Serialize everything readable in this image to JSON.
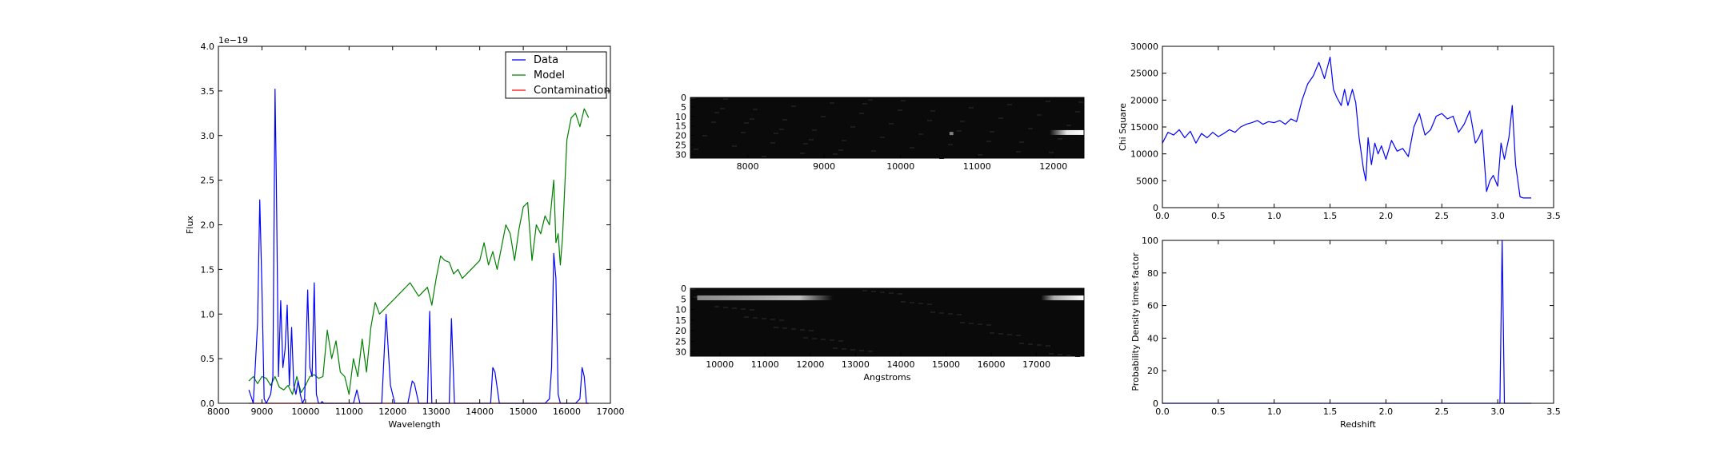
{
  "chart_data": [
    {
      "type": "line",
      "xlabel": "Wavelength",
      "ylabel": "Flux",
      "offset_text": "1e−19",
      "xlim": [
        8000,
        17000
      ],
      "ylim": [
        0.0,
        4.0
      ],
      "xticks": [
        8000,
        9000,
        10000,
        11000,
        12000,
        13000,
        14000,
        15000,
        16000,
        17000
      ],
      "xtick_labels": [
        "8000",
        "9000",
        "10000",
        "11000",
        "12000",
        "13000",
        "14000",
        "15000",
        "16000",
        "17000"
      ],
      "yticks": [
        0.0,
        0.5,
        1.0,
        1.5,
        2.0,
        2.5,
        3.0,
        3.5,
        4.0
      ],
      "ytick_labels": [
        "0.0",
        "0.5",
        "1.0",
        "1.5",
        "2.0",
        "2.5",
        "3.0",
        "3.5",
        "4.0"
      ],
      "grid": false,
      "legend_position": "top-right",
      "series": [
        {
          "name": "Data",
          "color": "#0000ff",
          "x": [
            8700,
            8800,
            8900,
            8950,
            9000,
            9050,
            9100,
            9200,
            9250,
            9300,
            9330,
            9380,
            9430,
            9480,
            9530,
            9580,
            9630,
            9680,
            9730,
            9780,
            9830,
            9880,
            9930,
            9980,
            10050,
            10100,
            10150,
            10200,
            10250,
            10300,
            10350,
            10380,
            10420,
            10500,
            10700,
            10900,
            11100,
            11180,
            11250,
            11350,
            11500,
            11650,
            11750,
            11850,
            11950,
            12050,
            12200,
            12350,
            12450,
            12500,
            12600,
            12700,
            12800,
            12850,
            12900,
            13000,
            13200,
            13300,
            13350,
            13420,
            13500,
            13800,
            14100,
            14250,
            14300,
            14350,
            14450,
            14500,
            14800,
            15200,
            15500,
            15600,
            15650,
            15700,
            15750,
            15800,
            15850,
            15950,
            16100,
            16200,
            16300,
            16350,
            16400,
            16450,
            16500
          ],
          "values": [
            0.15,
            0.0,
            0.9,
            2.28,
            1.3,
            0.05,
            0.0,
            0.1,
            0.3,
            3.52,
            2.5,
            0.3,
            1.15,
            0.4,
            0.6,
            1.1,
            0.2,
            0.85,
            0.2,
            0.1,
            0.25,
            0.1,
            0.0,
            0.05,
            1.27,
            0.4,
            0.3,
            1.35,
            0.1,
            0.0,
            0.0,
            0.02,
            0.0,
            0.0,
            0.0,
            0.0,
            0.0,
            0.15,
            0.0,
            0.0,
            0.0,
            0.0,
            0.0,
            1.0,
            0.2,
            0.0,
            0.0,
            0.0,
            0.25,
            0.22,
            0.0,
            0.0,
            0.0,
            1.03,
            0.0,
            0.0,
            0.0,
            0.0,
            0.95,
            0.0,
            0.0,
            0.0,
            0.0,
            0.0,
            0.4,
            0.35,
            0.0,
            0.0,
            0.0,
            0.0,
            0.0,
            0.05,
            0.4,
            1.68,
            1.4,
            0.1,
            0.0,
            0.0,
            0.0,
            0.0,
            0.05,
            0.4,
            0.3,
            0.0,
            0.0
          ]
        },
        {
          "name": "Model",
          "color": "#008000",
          "x": [
            8700,
            8800,
            8900,
            9000,
            9100,
            9200,
            9300,
            9400,
            9500,
            9600,
            9700,
            9800,
            9900,
            10000,
            10100,
            10200,
            10300,
            10400,
            10500,
            10600,
            10700,
            10800,
            10900,
            11000,
            11100,
            11200,
            11300,
            11400,
            11500,
            11600,
            11700,
            11800,
            11900,
            12000,
            12200,
            12400,
            12600,
            12800,
            12900,
            13000,
            13100,
            13200,
            13300,
            13400,
            13500,
            13600,
            13800,
            14000,
            14100,
            14200,
            14300,
            14400,
            14500,
            14600,
            14700,
            14800,
            14900,
            15000,
            15100,
            15200,
            15300,
            15400,
            15500,
            15600,
            15700,
            15750,
            15800,
            15850,
            15900,
            16000,
            16100,
            16200,
            16300,
            16400,
            16450,
            16500
          ],
          "values": [
            0.25,
            0.3,
            0.22,
            0.3,
            0.28,
            0.2,
            0.3,
            0.18,
            0.15,
            0.2,
            0.1,
            0.3,
            0.12,
            0.2,
            0.3,
            0.32,
            0.28,
            0.3,
            0.82,
            0.5,
            0.7,
            0.35,
            0.3,
            0.1,
            0.5,
            0.3,
            0.72,
            0.35,
            0.85,
            1.13,
            1.0,
            1.05,
            1.1,
            1.15,
            1.25,
            1.35,
            1.2,
            1.3,
            1.1,
            1.4,
            1.65,
            1.6,
            1.58,
            1.45,
            1.5,
            1.4,
            1.5,
            1.6,
            1.8,
            1.55,
            1.7,
            1.5,
            1.75,
            2.0,
            1.9,
            1.6,
            1.95,
            2.2,
            2.25,
            1.6,
            2.0,
            1.9,
            2.1,
            2.0,
            2.5,
            1.8,
            1.9,
            1.55,
            1.85,
            2.95,
            3.2,
            3.25,
            3.1,
            3.3,
            3.25,
            3.2
          ]
        },
        {
          "name": "Contamination",
          "color": "#ff0000",
          "x": [
            8700,
            16500
          ],
          "values": [
            0.0,
            0.0
          ]
        }
      ]
    },
    {
      "type": "heatmap",
      "xlabel": "",
      "ylabel": "",
      "xlim": [
        7250,
        12400
      ],
      "ylim": [
        32,
        0
      ],
      "xticks": [
        8000,
        9000,
        10000,
        11000,
        12000
      ],
      "xtick_labels": [
        "8000",
        "9000",
        "10000",
        "11000",
        "12000"
      ],
      "yticks": [
        0,
        5,
        10,
        15,
        20,
        25,
        30
      ],
      "ytick_labels": [
        "0",
        "5",
        "10",
        "15",
        "20",
        "25",
        "30"
      ],
      "colormap": "gray",
      "bright_features": [
        {
          "wavelength_range": [
            11950,
            12400
          ],
          "row": 18.5,
          "intensity": 0.9
        },
        {
          "wavelength_range": [
            10640,
            10690
          ],
          "row": 19,
          "intensity": 0.5
        }
      ]
    },
    {
      "type": "heatmap",
      "xlabel": "Angstroms",
      "ylabel": "",
      "xlim": [
        9350,
        18050
      ],
      "ylim": [
        32,
        0
      ],
      "xticks": [
        10000,
        11000,
        12000,
        13000,
        14000,
        15000,
        16000,
        17000
      ],
      "xtick_labels": [
        "10000",
        "11000",
        "12000",
        "13000",
        "14000",
        "15000",
        "16000",
        "17000"
      ],
      "yticks": [
        0,
        5,
        10,
        15,
        20,
        25,
        30
      ],
      "ytick_labels": [
        "0",
        "5",
        "10",
        "15",
        "20",
        "25",
        "30"
      ],
      "colormap": "gray",
      "bright_features": [
        {
          "wavelength_range": [
            9500,
            12500
          ],
          "row": 4.5,
          "intensity": 0.75
        },
        {
          "wavelength_range": [
            17100,
            18050
          ],
          "row": 4.5,
          "intensity": 1.0
        }
      ]
    },
    {
      "type": "line",
      "xlabel": "",
      "ylabel": "Chi Square",
      "xlim": [
        0.0,
        3.5
      ],
      "ylim": [
        0,
        30000
      ],
      "xticks": [
        0.0,
        0.5,
        1.0,
        1.5,
        2.0,
        2.5,
        3.0,
        3.5
      ],
      "xtick_labels": [
        "0.0",
        "0.5",
        "1.0",
        "1.5",
        "2.0",
        "2.5",
        "3.0",
        "3.5"
      ],
      "yticks": [
        0,
        5000,
        10000,
        15000,
        20000,
        25000,
        30000
      ],
      "ytick_labels": [
        "0",
        "5000",
        "10000",
        "15000",
        "20000",
        "25000",
        "30000"
      ],
      "grid": false,
      "series": [
        {
          "color": "#0000ff",
          "x": [
            0.0,
            0.05,
            0.1,
            0.15,
            0.2,
            0.25,
            0.3,
            0.35,
            0.4,
            0.45,
            0.5,
            0.55,
            0.6,
            0.65,
            0.7,
            0.75,
            0.8,
            0.85,
            0.9,
            0.95,
            1.0,
            1.05,
            1.1,
            1.15,
            1.2,
            1.25,
            1.3,
            1.35,
            1.4,
            1.45,
            1.5,
            1.53,
            1.56,
            1.6,
            1.63,
            1.66,
            1.7,
            1.73,
            1.76,
            1.8,
            1.82,
            1.84,
            1.87,
            1.9,
            1.93,
            1.96,
            2.0,
            2.05,
            2.1,
            2.15,
            2.2,
            2.25,
            2.3,
            2.35,
            2.4,
            2.45,
            2.5,
            2.55,
            2.6,
            2.65,
            2.7,
            2.75,
            2.8,
            2.83,
            2.86,
            2.9,
            2.93,
            2.96,
            3.0,
            3.03,
            3.06,
            3.1,
            3.13,
            3.16,
            3.2,
            3.23,
            3.26,
            3.3
          ],
          "values": [
            12000,
            14000,
            13500,
            14500,
            13000,
            14200,
            12000,
            13800,
            13000,
            14000,
            13200,
            13800,
            14500,
            14000,
            15000,
            15500,
            15800,
            16200,
            15500,
            16000,
            15800,
            16200,
            15500,
            16500,
            16000,
            20000,
            23000,
            24500,
            27000,
            24000,
            28000,
            22000,
            20500,
            19000,
            22000,
            19000,
            22000,
            19500,
            13000,
            7000,
            5000,
            13000,
            8000,
            12000,
            10000,
            11500,
            9000,
            12500,
            10500,
            11000,
            9500,
            15000,
            17500,
            13500,
            14500,
            17000,
            17500,
            16500,
            17000,
            14000,
            15500,
            18000,
            12000,
            13000,
            14500,
            3000,
            5000,
            6000,
            4000,
            12000,
            9000,
            13000,
            19000,
            8000,
            2000,
            1800,
            1800,
            1800
          ]
        }
      ]
    },
    {
      "type": "line",
      "xlabel": "Redshift",
      "ylabel": "Probability Density times factor",
      "xlim": [
        0.0,
        3.5
      ],
      "ylim": [
        0,
        100
      ],
      "xticks": [
        0.0,
        0.5,
        1.0,
        1.5,
        2.0,
        2.5,
        3.0,
        3.5
      ],
      "xtick_labels": [
        "0.0",
        "0.5",
        "1.0",
        "1.5",
        "2.0",
        "2.5",
        "3.0",
        "3.5"
      ],
      "yticks": [
        0,
        20,
        40,
        60,
        80,
        100
      ],
      "ytick_labels": [
        "0",
        "20",
        "40",
        "60",
        "80",
        "100"
      ],
      "grid": false,
      "series": [
        {
          "color": "#0000ff",
          "x": [
            0.0,
            3.02,
            3.04,
            3.06,
            3.3
          ],
          "values": [
            0,
            0,
            100,
            0,
            0
          ]
        }
      ]
    }
  ]
}
